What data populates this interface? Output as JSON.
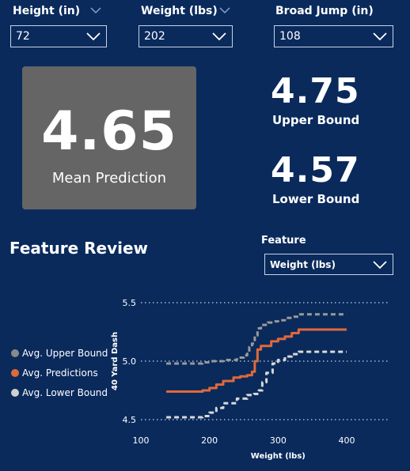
{
  "slicers": {
    "height": {
      "label": "Height (in)",
      "value": "72"
    },
    "weight": {
      "label": "Weight (lbs)",
      "value": "202"
    },
    "broad_jump": {
      "label": "Broad Jump (in)",
      "value": "108"
    }
  },
  "kpi": {
    "mean": {
      "value": "4.65",
      "caption": "Mean Prediction"
    },
    "upper": {
      "value": "4.75",
      "caption": "Upper Bound"
    },
    "lower": {
      "value": "4.57",
      "caption": "Lower Bound"
    }
  },
  "section_title": "Feature Review",
  "feature_selector": {
    "label": "Feature",
    "value": "Weight (lbs)"
  },
  "colors": {
    "background": "#0a2a5c",
    "card": "#656565",
    "upper": "#9a9a9a",
    "prediction": "#e0693a",
    "lower": "#d8d8d8"
  },
  "icons": [
    "chevron-down-icon"
  ],
  "chart_data": {
    "type": "line",
    "xlabel": "Weight (lbs)",
    "ylabel": "40 Yard Dash",
    "xlim": [
      100,
      460
    ],
    "ylim": [
      4.5,
      5.5
    ],
    "x_ticks": [
      100,
      200,
      300,
      400
    ],
    "y_ticks": [
      4.5,
      5.0,
      5.5
    ],
    "x_tick_labels": [
      "100",
      "200",
      "300",
      "400"
    ],
    "y_tick_labels": [
      "4.5",
      "5.0",
      "5.5"
    ],
    "grid": "horizontal dotted",
    "legend_position": "left",
    "series": [
      {
        "name": "Avg. Upper Bound",
        "color": "#9a9a9a",
        "style": "dashed",
        "x": [
          137,
          160,
          190,
          200,
          220,
          240,
          250,
          255,
          258,
          262,
          266,
          270,
          275,
          285,
          293,
          300,
          310,
          320,
          330,
          400
        ],
        "y": [
          4.98,
          4.98,
          4.99,
          5.0,
          5.01,
          5.03,
          5.05,
          5.08,
          5.12,
          5.15,
          5.22,
          5.28,
          5.31,
          5.33,
          5.34,
          5.35,
          5.37,
          5.38,
          5.4,
          5.4
        ]
      },
      {
        "name": "Avg. Predictions",
        "color": "#e0693a",
        "style": "solid",
        "x": [
          137,
          160,
          190,
          200,
          210,
          220,
          235,
          245,
          255,
          262,
          266,
          270,
          275,
          290,
          300,
          310,
          320,
          330,
          400
        ],
        "y": [
          4.74,
          4.74,
          4.75,
          4.77,
          4.8,
          4.83,
          4.86,
          4.87,
          4.88,
          4.91,
          5.0,
          5.1,
          5.13,
          5.17,
          5.19,
          5.21,
          5.24,
          5.27,
          5.27
        ]
      },
      {
        "name": "Avg. Lower Bound",
        "color": "#d8d8d8",
        "style": "dashed",
        "x": [
          137,
          160,
          190,
          200,
          210,
          220,
          240,
          255,
          265,
          272,
          277,
          283,
          292,
          300,
          310,
          320,
          330,
          400
        ],
        "y": [
          4.52,
          4.52,
          4.53,
          4.56,
          4.6,
          4.64,
          4.68,
          4.71,
          4.72,
          4.75,
          4.82,
          4.9,
          4.98,
          5.01,
          5.04,
          5.06,
          5.08,
          5.08
        ]
      }
    ]
  }
}
